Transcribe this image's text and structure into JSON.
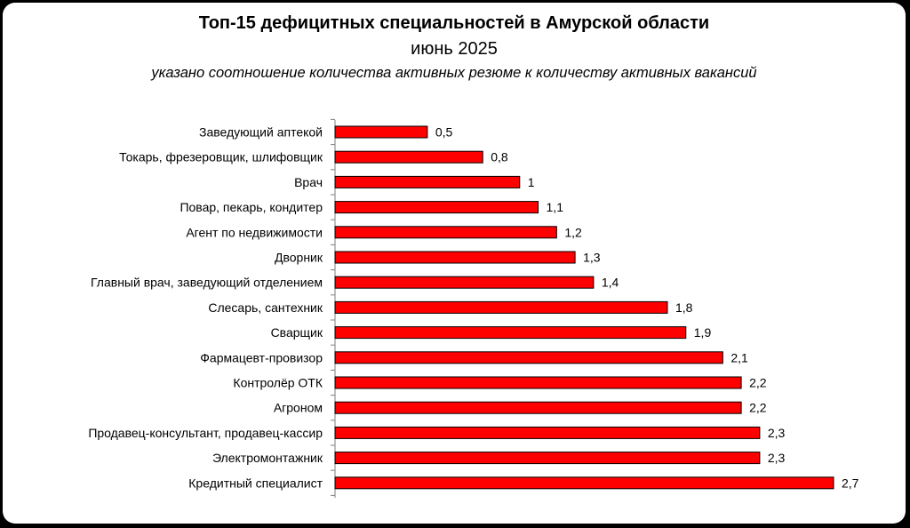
{
  "chart_data": {
    "type": "bar",
    "orientation": "horizontal",
    "title": "Топ-15 дефицитных специальностей в Амурской области",
    "subtitle": "июнь 2025",
    "note": "указано соотношение количества активных резюме к количеству активных вакансий",
    "categories": [
      "Заведующий аптекой",
      "Токарь, фрезеровщик, шлифовщик",
      "Врач",
      "Повар, пекарь, кондитер",
      "Агент по недвижимости",
      "Дворник",
      "Главный врач, заведующий отделением",
      "Слесарь, сантехник",
      "Сварщик",
      "Фармацевт-провизор",
      "Контролёр ОТК",
      "Агроном",
      "Продавец-консультант, продавец-кассир",
      "Электромонтажник",
      "Кредитный специалист"
    ],
    "values": [
      0.5,
      0.8,
      1,
      1.1,
      1.2,
      1.3,
      1.4,
      1.8,
      1.9,
      2.1,
      2.2,
      2.2,
      2.3,
      2.3,
      2.7
    ],
    "value_labels": [
      "0,5",
      "0,8",
      "1",
      "1,1",
      "1,2",
      "1,3",
      "1,4",
      "1,8",
      "1,9",
      "2,1",
      "2,2",
      "2,2",
      "2,3",
      "2,3",
      "2,7"
    ],
    "xlim": [
      0,
      2.7
    ],
    "bar_color": "#ff0000",
    "bar_outline": "#000000",
    "grid": false,
    "legend": "none"
  }
}
